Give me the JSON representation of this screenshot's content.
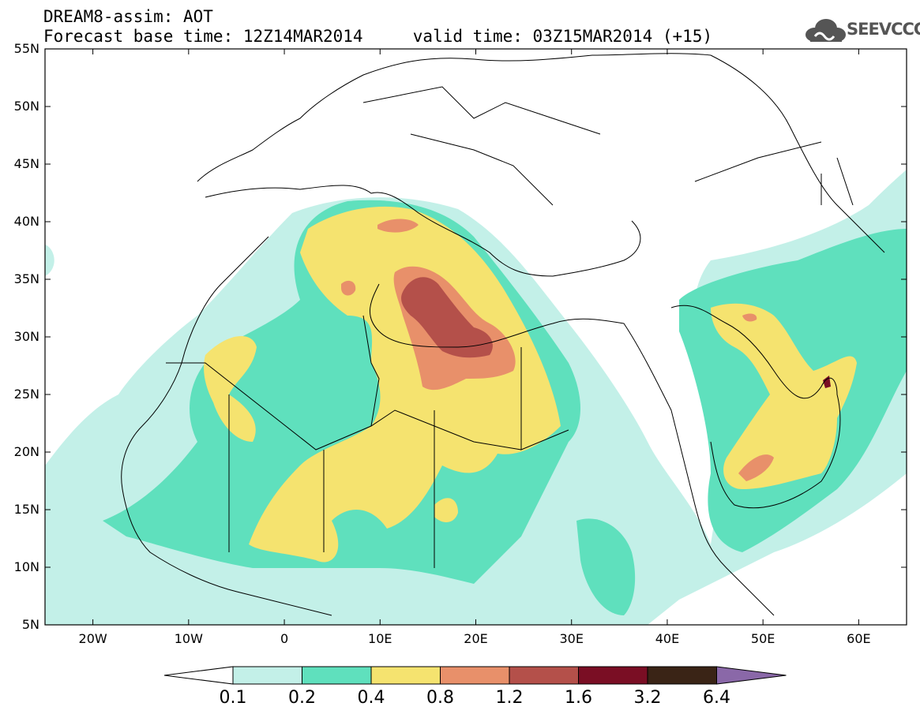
{
  "header": {
    "line1": "DREAM8-assim: AOT",
    "line2": "Forecast base time: 12Z14MAR2014     valid time: 03Z15MAR2014 (+15)"
  },
  "logo": {
    "text": "SEEVCCC",
    "icon": "cloud-icon"
  },
  "map": {
    "lat_labels": [
      "55N",
      "50N",
      "45N",
      "40N",
      "35N",
      "30N",
      "25N",
      "20N",
      "15N",
      "10N",
      "5N"
    ],
    "lon_labels": [
      "20W",
      "10W",
      "0",
      "10E",
      "20E",
      "30E",
      "40E",
      "50E",
      "60E"
    ]
  },
  "colorbar": {
    "labels": [
      "0.1",
      "0.2",
      "0.4",
      "0.8",
      "1.2",
      "1.6",
      "3.2",
      "6.4"
    ],
    "colors": [
      "#ffffff",
      "#c3f0e8",
      "#5fe0bd",
      "#f5e36f",
      "#e8906a",
      "#b4504a",
      "#7a0e24",
      "#3a2416",
      "#8a68a8"
    ]
  }
}
